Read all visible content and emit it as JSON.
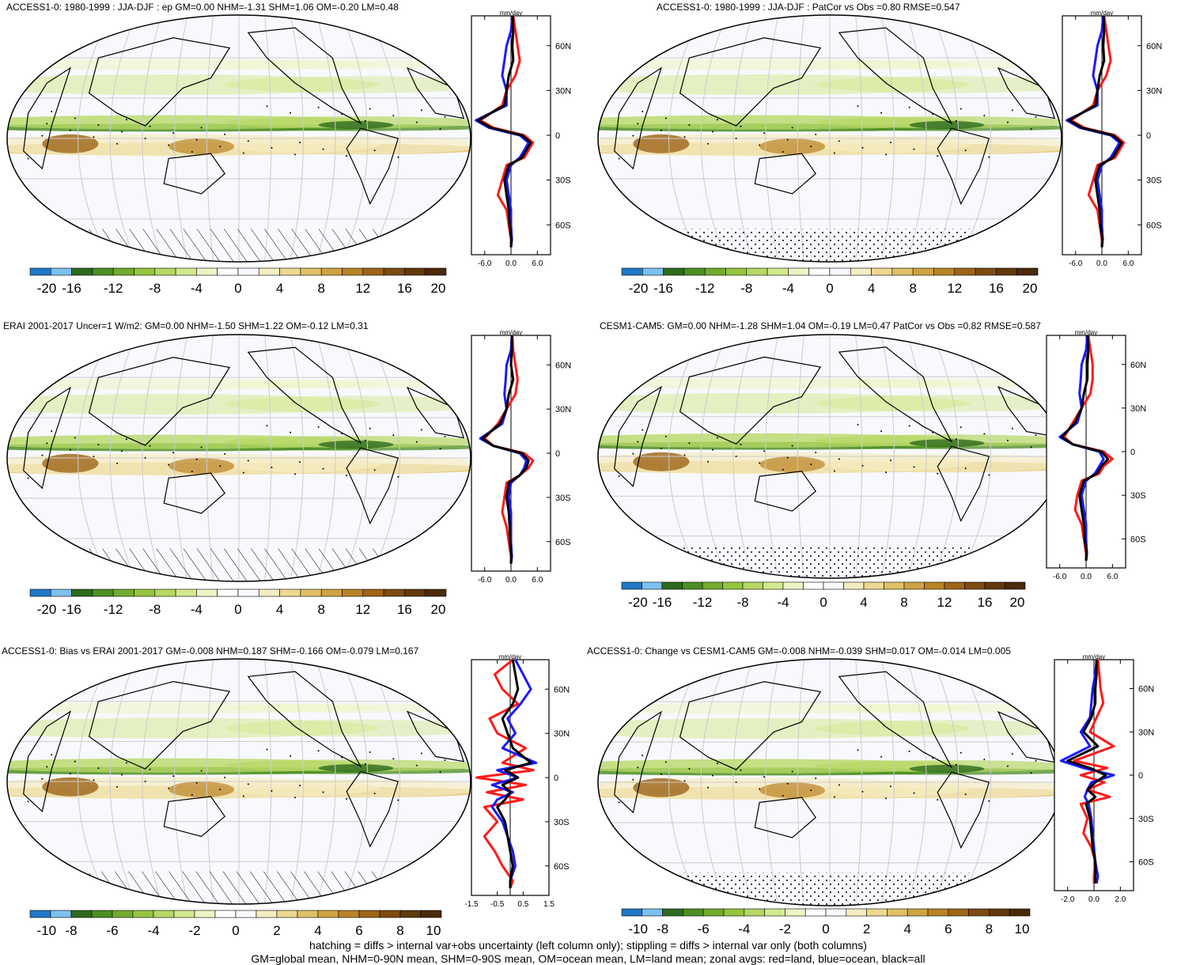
{
  "panels": [
    {
      "title": "ACCESS1-0: 1980-1999 : JJA-DJF : ep GM=0.00 NHM=-1.31 SHM=1.06 OM=-0.20 LM=0.48",
      "zonal_unit": "mm/day",
      "zonal_xticks": [
        "-6.0",
        "0.0",
        "6.0"
      ],
      "zonal_xlim": [
        -9,
        9
      ],
      "lat_ticks": [
        "60N",
        "30N",
        "0",
        "30S",
        "60S"
      ],
      "colorbar_labels": [
        "-20",
        "-16",
        "-12",
        "-8",
        "-4",
        "0",
        "4",
        "8",
        "12",
        "16",
        "20"
      ],
      "polar_pattern": "hatch"
    },
    {
      "title": "ACCESS1-0: 1980-1999 : JJA-DJF : PatCor vs Obs =0.80 RMSE=0.547",
      "zonal_unit": "mm/day",
      "zonal_xticks": [
        "-6.0",
        "0.0",
        "6.0"
      ],
      "zonal_xlim": [
        -9,
        9
      ],
      "lat_ticks": [
        "60N",
        "30N",
        "0",
        "30S",
        "60S"
      ],
      "colorbar_labels": [
        "-20",
        "-16",
        "-12",
        "-8",
        "-4",
        "0",
        "4",
        "8",
        "12",
        "16",
        "20"
      ],
      "polar_pattern": "stipple"
    },
    {
      "title": "ERAI 2001-2017 Uncer=1 W/m2: GM=0.00 NHM=-1.50 SHM=1.22 OM=-0.12 LM=0.31",
      "zonal_unit": "mm/day",
      "zonal_xticks": [
        "-6.0",
        "0.0",
        "6.0"
      ],
      "zonal_xlim": [
        -9,
        9
      ],
      "lat_ticks": [
        "60N",
        "30N",
        "0",
        "30S",
        "60S"
      ],
      "colorbar_labels": [
        "-20",
        "-16",
        "-12",
        "-8",
        "-4",
        "0",
        "4",
        "8",
        "12",
        "16",
        "20"
      ],
      "polar_pattern": "hatch"
    },
    {
      "title": "CESM1-CAM5: GM=0.00 NHM=-1.28 SHM=1.04 OM=-0.19 LM=0.47 PatCor vs Obs =0.82 RMSE=0.587",
      "zonal_unit": "mm/day",
      "zonal_xticks": [
        "-6.0",
        "0.0",
        "6.0"
      ],
      "zonal_xlim": [
        -9,
        9
      ],
      "lat_ticks": [
        "60N",
        "30N",
        "0",
        "30S",
        "60S"
      ],
      "colorbar_labels": [
        "-20",
        "-16",
        "-12",
        "-8",
        "-4",
        "0",
        "4",
        "8",
        "12",
        "16",
        "20"
      ],
      "polar_pattern": "stipple"
    },
    {
      "title": "ACCESS1-0: Bias vs ERAI 2001-2017 GM=-0.008 NHM=0.187 SHM=-0.166 OM=-0.079 LM=0.167",
      "zonal_unit": "mm/day",
      "zonal_xticks": [
        "-1.5",
        "-0.5",
        "0.5",
        "1.5"
      ],
      "zonal_xlim": [
        -1.5,
        1.5
      ],
      "lat_ticks": [
        "60N",
        "30N",
        "0",
        "30S",
        "60S"
      ],
      "colorbar_labels": [
        "-10",
        "-8",
        "-6",
        "-4",
        "-2",
        "0",
        "2",
        "4",
        "6",
        "8",
        "10"
      ],
      "polar_pattern": "hatch"
    },
    {
      "title": "ACCESS1-0: Change vs CESM1-CAM5 GM=-0.008 NHM=-0.039 SHM=0.017 OM=-0.014 LM=0.005",
      "zonal_unit": "mm/day",
      "zonal_xticks": [
        "-2.0",
        "0.0",
        "2.0"
      ],
      "zonal_xlim": [
        -3,
        3
      ],
      "lat_ticks": [
        "60N",
        "30N",
        "0",
        "30S",
        "60S"
      ],
      "colorbar_labels": [
        "-10",
        "-8",
        "-6",
        "-4",
        "-2",
        "0",
        "2",
        "4",
        "6",
        "8",
        "10"
      ],
      "polar_pattern": "stipple"
    }
  ],
  "colors": {
    "palette": [
      "#1f78c8",
      "#7ec0ee",
      "#2e6a1e",
      "#4d8f23",
      "#72ab2e",
      "#96c43f",
      "#b7d865",
      "#d4e98f",
      "#ecf5c6",
      "#ffffff",
      "#f8f8ff",
      "#f5ecc2",
      "#ecd891",
      "#dfc066",
      "#cfa343",
      "#b98327",
      "#9e6418",
      "#7e4a12",
      "#62380d",
      "#4a2a0a"
    ],
    "land_series": "#ff1a1a",
    "ocean_series": "#1a1aff",
    "all_series": "#000000",
    "map_background": "#f8f8ff"
  },
  "footer": {
    "line1": "hatching = diffs > internal var+obs uncertainty (left column only); stippling = diffs > internal var only (both columns)",
    "line2": "GM=global mean, NHM=0-90N mean, SHM=0-90S mean, OM=ocean mean, LM=land mean; zonal avgs: red=land, blue=ocean, black=all"
  },
  "chart_data": [
    {
      "type": "line",
      "title": "ACCESS1-0: 1980-1999 : JJA-DJF : ep GM=0.00 NHM=-1.31 SHM=1.06 OM=-0.20 LM=0.48",
      "xlabel": "mm/day",
      "xlim": [
        -9,
        9
      ],
      "ylim": [
        -80,
        80
      ],
      "lat": [
        80,
        70,
        60,
        50,
        40,
        30,
        20,
        10,
        5,
        0,
        -5,
        -10,
        -15,
        -20,
        -30,
        -40,
        -50,
        -60,
        -70,
        -75
      ],
      "series": [
        {
          "values": [
            0.5,
            1,
            1.5,
            2,
            1,
            -1,
            -2,
            -7,
            -4,
            3,
            5,
            4,
            3,
            -1,
            -2,
            -3,
            -1,
            -0.5,
            0,
            0
          ]
        },
        {
          "values": [
            0.3,
            0,
            -1,
            -1.5,
            -2,
            -1,
            -1,
            -8,
            -5,
            2,
            4,
            3,
            2,
            0,
            -1,
            -0.5,
            0,
            0,
            0.2,
            0
          ]
        },
        {
          "values": [
            0.4,
            0.5,
            0.3,
            0.5,
            -0.5,
            -1,
            -1.5,
            -7.5,
            -4.5,
            2.5,
            4.5,
            3.5,
            2.5,
            -0.5,
            -1.5,
            -1,
            -0.5,
            -0.3,
            0.1,
            0
          ]
        }
      ]
    },
    {
      "type": "line",
      "title": "ACCESS1-0: 1980-1999 : JJA-DJF : PatCor vs Obs =0.80 RMSE=0.547",
      "xlabel": "mm/day",
      "xlim": [
        -9,
        9
      ],
      "ylim": [
        -80,
        80
      ],
      "lat": [
        80,
        70,
        60,
        50,
        40,
        30,
        20,
        10,
        5,
        0,
        -5,
        -10,
        -15,
        -20,
        -30,
        -40,
        -50,
        -60,
        -70,
        -75
      ],
      "series": [
        {
          "values": [
            0.5,
            1,
            1.5,
            2,
            1,
            -1,
            -2,
            -7,
            -4,
            3,
            5,
            4,
            3,
            -1,
            -2,
            -3,
            -1,
            -0.5,
            0,
            0
          ]
        },
        {
          "values": [
            0.3,
            0,
            -1,
            -1.5,
            -2,
            -1,
            -1,
            -8,
            -5,
            2,
            4,
            3,
            2,
            0,
            -1,
            -0.5,
            0,
            0,
            0.2,
            0
          ]
        },
        {
          "values": [
            0.4,
            0.5,
            0.3,
            0.5,
            -0.5,
            -1,
            -1.5,
            -7.5,
            -4.5,
            2.5,
            4.5,
            3.5,
            2.5,
            -0.5,
            -1.5,
            -1,
            -0.5,
            -0.3,
            0.1,
            0
          ]
        }
      ]
    },
    {
      "type": "line",
      "title": "ERAI 2001-2017 Uncer=1 W/m2: GM=0.00 NHM=-1.50 SHM=1.22 OM=-0.12 LM=0.31",
      "xlabel": "mm/day",
      "xlim": [
        -9,
        9
      ],
      "ylim": [
        -80,
        80
      ],
      "lat": [
        80,
        70,
        60,
        50,
        40,
        30,
        20,
        10,
        5,
        0,
        -5,
        -10,
        -15,
        -20,
        -30,
        -40,
        -50,
        -60,
        -70,
        -75
      ],
      "series": [
        {
          "values": [
            0.3,
            0.5,
            1,
            1.5,
            1,
            -1,
            -3,
            -6,
            -4,
            3,
            5,
            4,
            2,
            -1,
            -1.5,
            -2,
            -1,
            -0.5,
            0,
            0
          ]
        },
        {
          "values": [
            0.2,
            0,
            -1,
            -1.2,
            -1.5,
            -1,
            -2,
            -7,
            -4,
            2,
            3.5,
            3,
            2,
            0,
            -0.5,
            0,
            0,
            0,
            0.2,
            0
          ]
        },
        {
          "values": [
            0.2,
            0.2,
            0,
            0.5,
            -0.5,
            -1,
            -2.5,
            -6.5,
            -4,
            2.5,
            4,
            3.5,
            2,
            -0.5,
            -1,
            -0.5,
            -0.3,
            -0.2,
            0.1,
            0
          ]
        }
      ]
    },
    {
      "type": "line",
      "title": "CESM1-CAM5: GM=0.00 NHM=-1.28 SHM=1.04 OM=-0.19 LM=0.47 PatCor vs Obs =0.82 RMSE=0.587",
      "xlabel": "mm/day",
      "xlim": [
        -9,
        9
      ],
      "ylim": [
        -80,
        80
      ],
      "lat": [
        80,
        70,
        60,
        50,
        40,
        30,
        20,
        10,
        5,
        0,
        -5,
        -10,
        -15,
        -20,
        -30,
        -40,
        -50,
        -60,
        -70,
        -75
      ],
      "series": [
        {
          "values": [
            0.5,
            1,
            1.5,
            1.5,
            1,
            -1,
            -3,
            -5,
            -3,
            4,
            6,
            4,
            3,
            -1,
            -2,
            -2.5,
            -1,
            -0.5,
            0,
            0
          ]
        },
        {
          "values": [
            0.3,
            0,
            -1,
            -1.2,
            -1.5,
            -1,
            -2,
            -6,
            -3,
            3,
            4,
            3,
            2,
            0,
            -1,
            -0.5,
            0,
            0,
            0.2,
            0
          ]
        },
        {
          "values": [
            0.4,
            0.5,
            0.3,
            0.3,
            -0.5,
            -1,
            -2.5,
            -5.5,
            -3,
            3.5,
            5,
            3.5,
            2.5,
            -0.5,
            -1.5,
            -1,
            -0.5,
            -0.3,
            0.1,
            0
          ]
        }
      ]
    },
    {
      "type": "line",
      "title": "ACCESS1-0: Bias vs ERAI 2001-2017 GM=-0.008 NHM=0.187 SHM=-0.166 OM=-0.079 LM=0.167",
      "xlabel": "mm/day",
      "xlim": [
        -1.5,
        1.5
      ],
      "ylim": [
        -80,
        80
      ],
      "lat": [
        80,
        70,
        60,
        50,
        40,
        30,
        20,
        10,
        5,
        0,
        -5,
        -10,
        -15,
        -20,
        -30,
        -40,
        -50,
        -60,
        -70,
        -75
      ],
      "series": [
        {
          "values": [
            0.1,
            -0.6,
            -0.3,
            0.3,
            -0.8,
            -0.5,
            0.6,
            -0.3,
            0.9,
            -1.3,
            0.6,
            -0.9,
            0.5,
            -1.0,
            -0.5,
            -1.0,
            -0.6,
            -0.3,
            0.1,
            0
          ]
        },
        {
          "values": [
            0.2,
            0.5,
            0.8,
            0.4,
            -0.1,
            0.2,
            -0.3,
            1.0,
            -0.5,
            0.3,
            -0.7,
            0.1,
            -0.5,
            -0.7,
            -0.3,
            -0.1,
            0.1,
            0.2,
            0,
            0
          ]
        },
        {
          "values": [
            0.1,
            0.2,
            0.3,
            0.1,
            -0.3,
            -0.1,
            0.1,
            0.8,
            -0.2,
            0.3,
            -0.3,
            0,
            -0.2,
            -0.5,
            -0.2,
            -0.1,
            0,
            0.1,
            0,
            0
          ]
        }
      ]
    },
    {
      "type": "line",
      "title": "ACCESS1-0: Change vs CESM1-CAM5 GM=-0.008 NHM=-0.039 SHM=0.017 OM=-0.014 LM=0.005",
      "xlabel": "mm/day",
      "xlim": [
        -3,
        3
      ],
      "ylim": [
        -80,
        80
      ],
      "lat": [
        80,
        70,
        60,
        50,
        40,
        30,
        20,
        10,
        5,
        0,
        -5,
        -10,
        -15,
        -20,
        -30,
        -40,
        -50,
        -60,
        -70,
        -75
      ],
      "series": [
        {
          "values": [
            0.3,
            0.4,
            0.5,
            0.7,
            0.2,
            -0.3,
            1.5,
            -1.5,
            1.0,
            -1.0,
            0.8,
            -0.5,
            1.2,
            -1.0,
            -0.5,
            -0.8,
            -0.2,
            0.1,
            0,
            0
          ]
        },
        {
          "values": [
            0.2,
            0.1,
            -0.1,
            -0.2,
            -0.3,
            -1.0,
            -0.3,
            -2.5,
            -0.8,
            1.5,
            -0.2,
            -0.5,
            -0.7,
            -0.4,
            -0.2,
            -0.1,
            0,
            0.1,
            0.3,
            0.2
          ]
        },
        {
          "values": [
            0.2,
            0.2,
            0.1,
            0.1,
            -0.2,
            -0.8,
            0.3,
            -2.0,
            -0.3,
            0.9,
            0.1,
            -0.5,
            0.1,
            -0.6,
            -0.3,
            -0.2,
            -0.1,
            0.1,
            0.1,
            0.1
          ]
        }
      ]
    }
  ]
}
